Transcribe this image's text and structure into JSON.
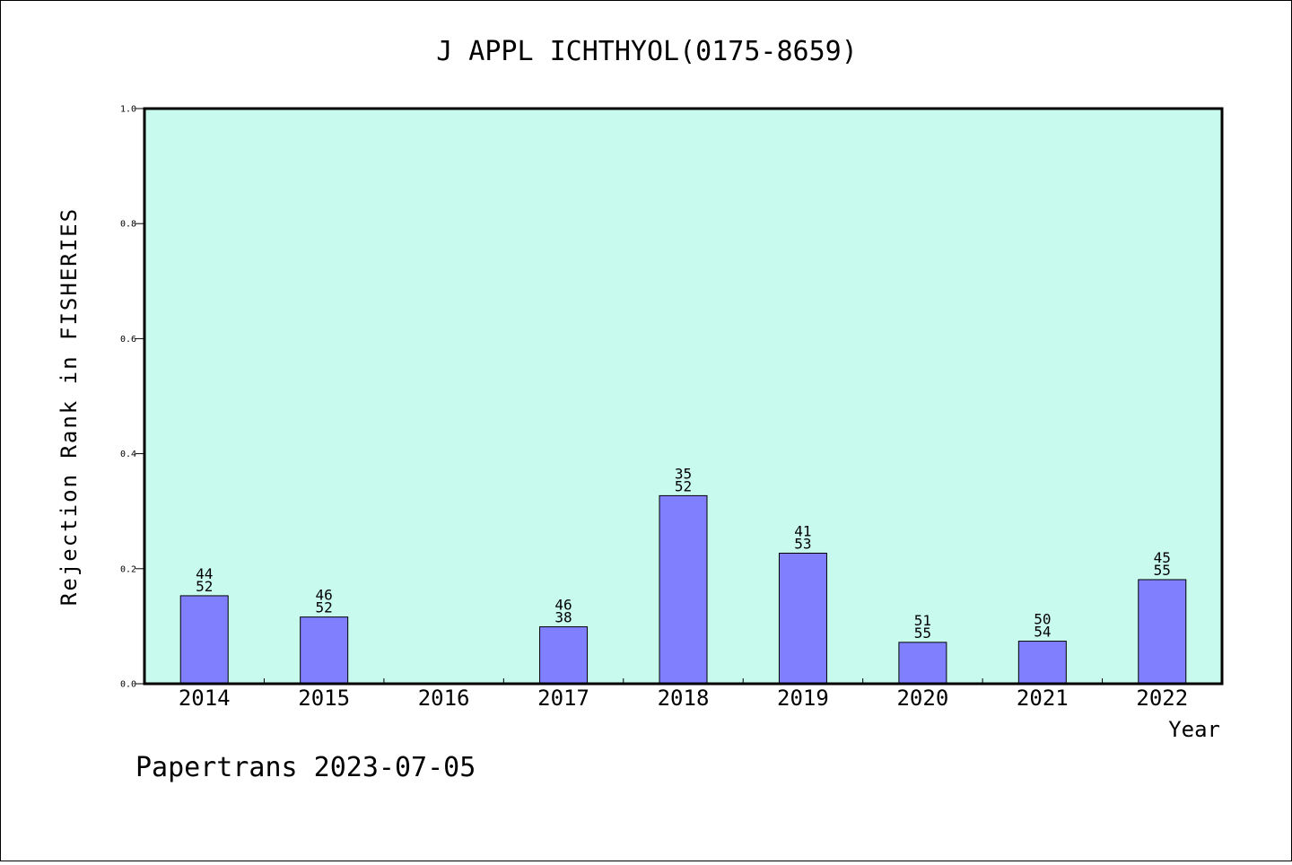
{
  "footer": "Papertrans 2023-07-05",
  "colors": {
    "plot_background": "#c8fbee",
    "bar_fill": "#8080ff",
    "bar_stroke": "#000000",
    "axis": "#000000"
  },
  "chart_data": {
    "type": "bar",
    "title": "J APPL ICHTHYOL(0175-8659)",
    "xlabel": "Year",
    "ylabel": "Rejection Rank in FISHERIES",
    "categories": [
      "2014",
      "2015",
      "2016",
      "2017",
      "2018",
      "2019",
      "2020",
      "2021",
      "2022"
    ],
    "values": [
      0.153,
      0.116,
      null,
      0.099,
      0.327,
      0.227,
      0.072,
      0.074,
      0.181
    ],
    "bar_labels": [
      [
        "44",
        "52"
      ],
      [
        "46",
        "52"
      ],
      null,
      [
        "46",
        "38"
      ],
      [
        "35",
        "52"
      ],
      [
        "41",
        "53"
      ],
      [
        "51",
        "55"
      ],
      [
        "50",
        "54"
      ],
      [
        "45",
        "55"
      ]
    ],
    "ylim": [
      0.0,
      1.0
    ],
    "yticks": [
      "0.0",
      "0.2",
      "0.4",
      "0.6",
      "0.8",
      "1.0"
    ],
    "grid": false,
    "legend": "none"
  }
}
